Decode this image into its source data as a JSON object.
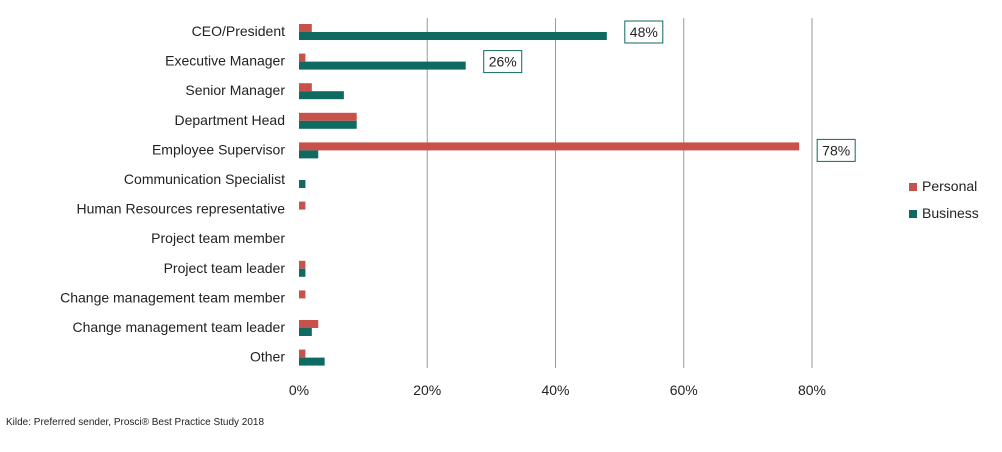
{
  "chart_data": {
    "type": "bar",
    "orientation": "horizontal",
    "categories": [
      "CEO/President",
      "Executive Manager",
      "Senior Manager",
      "Department Head",
      "Employee Supervisor",
      "Communication Specialist",
      "Human Resources representative",
      "Project team member",
      "Project team leader",
      "Change management team member",
      "Change management team leader",
      "Other"
    ],
    "series": [
      {
        "name": "Personal",
        "color": "#C8524A",
        "values": [
          2,
          1,
          2,
          9,
          78,
          0,
          1,
          0,
          1,
          1,
          3,
          1
        ]
      },
      {
        "name": "Business",
        "color": "#0F6A62",
        "values": [
          48,
          26,
          7,
          9,
          3,
          1,
          0,
          0,
          1,
          0,
          2,
          4
        ]
      }
    ],
    "xlim": [
      0,
      80
    ],
    "ticks": [
      0,
      20,
      40,
      60,
      80
    ],
    "tick_labels": [
      "0%",
      "20%",
      "40%",
      "60%",
      "80%"
    ],
    "grid": "vertical",
    "legend_position": "right",
    "annotations": [
      {
        "text": "48%",
        "category_index": 0,
        "series": "Business"
      },
      {
        "text": "26%",
        "category_index": 1,
        "series": "Business"
      },
      {
        "text": "78%",
        "category_index": 4,
        "series": "Personal"
      }
    ],
    "source": "Kilde: Preferred sender, Prosci® Best Practice Study 2018"
  },
  "colors": {
    "grid": "#9a9a9a",
    "callout_border": "#0F6A62",
    "text": "#222222"
  }
}
